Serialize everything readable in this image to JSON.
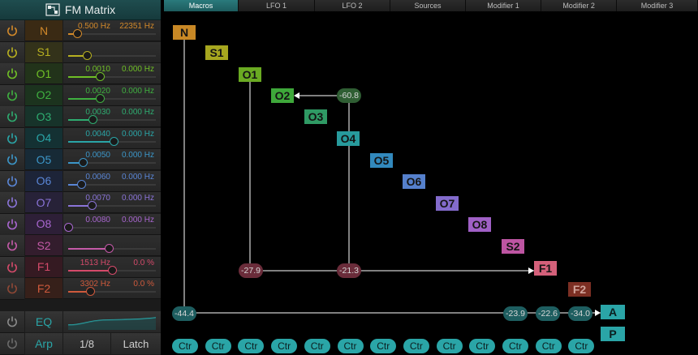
{
  "header": {
    "title": "FM Matrix"
  },
  "colors": {
    "accent": "#2aa5a7",
    "arrow": "#ffffff"
  },
  "rows": [
    {
      "name": "N",
      "v1": "0.500 Hz",
      "v2": "22351 Hz",
      "level": 0.1,
      "color": "#d2892a",
      "bg": "#3a2a14"
    },
    {
      "name": "S1",
      "v1": "",
      "v2": "",
      "level": 0.21,
      "color": "#b7b020",
      "bg": "#33321a"
    },
    {
      "name": "O1",
      "v1": "0.0010",
      "v2": "0.000 Hz",
      "level": 0.36,
      "color": "#6fbf26",
      "bg": "#22331a"
    },
    {
      "name": "O2",
      "v1": "0.0020",
      "v2": "0.000 Hz",
      "level": 0.36,
      "color": "#3fb040",
      "bg": "#1c331e"
    },
    {
      "name": "O3",
      "v1": "0.0030",
      "v2": "0.000 Hz",
      "level": 0.28,
      "color": "#2eac70",
      "bg": "#17332a"
    },
    {
      "name": "O4",
      "v1": "0.0040",
      "v2": "0.000 Hz",
      "level": 0.52,
      "color": "#2aa5a7",
      "bg": "#143133"
    },
    {
      "name": "O5",
      "v1": "0.0050",
      "v2": "0.000 Hz",
      "level": 0.17,
      "color": "#3c96c8",
      "bg": "#172a36"
    },
    {
      "name": "O6",
      "v1": "0.0060",
      "v2": "0.000 Hz",
      "level": 0.15,
      "color": "#5a86d6",
      "bg": "#1d2438"
    },
    {
      "name": "O7",
      "v1": "0.0070",
      "v2": "0.000 Hz",
      "level": 0.27,
      "color": "#8a74d8",
      "bg": "#272238"
    },
    {
      "name": "O8",
      "v1": "0.0080",
      "v2": "0.000 Hz",
      "level": 0.0,
      "color": "#a866cf",
      "bg": "#2d1f37"
    },
    {
      "name": "S2",
      "v1": "",
      "v2": "",
      "level": 0.46,
      "color": "#c45aa8",
      "bg": "#331d2d"
    },
    {
      "name": "F1",
      "v1": "1513 Hz",
      "v2": "0.0 %",
      "level": 0.5,
      "color": "#d44a6a",
      "bg": "#351a22"
    },
    {
      "name": "F2",
      "v1": "3302 Hz",
      "v2": "0.0 %",
      "level": 0.25,
      "color": "#cf5a3c",
      "bg": "#36201a"
    }
  ],
  "eq": {
    "label": "EQ"
  },
  "arp": {
    "label": "Arp",
    "rate": "1/8",
    "latch": "Latch"
  },
  "tabs": [
    "Macros",
    "LFO 1",
    "LFO 2",
    "Sources",
    "Modifier 1",
    "Modifier 2",
    "Modifier 3"
  ],
  "matrix": {
    "nodes": [
      {
        "label": "N",
        "color": "#c88825",
        "text": "#141414"
      },
      {
        "label": "S1",
        "color": "#a7a71f",
        "text": "#141414"
      },
      {
        "label": "O1",
        "color": "#6aaa22",
        "text": "#141414"
      },
      {
        "label": "O2",
        "color": "#3ea83a",
        "text": "#141414"
      },
      {
        "label": "O3",
        "color": "#2f9a64",
        "text": "#141414"
      },
      {
        "label": "O4",
        "color": "#279a9c",
        "text": "#141414"
      },
      {
        "label": "O5",
        "color": "#3289bd",
        "text": "#141414"
      },
      {
        "label": "O6",
        "color": "#5580cc",
        "text": "#141414"
      },
      {
        "label": "O7",
        "color": "#836bcc",
        "text": "#141414"
      },
      {
        "label": "O8",
        "color": "#a060c6",
        "text": "#141414"
      },
      {
        "label": "S2",
        "color": "#bd55a2",
        "text": "#141414"
      },
      {
        "label": "F1",
        "color": "#d4607a",
        "text": "#141414"
      },
      {
        "label": "F2",
        "color": "#7c2f23",
        "text": "#d0a39a"
      },
      {
        "label": "A",
        "color": "#2aa5a7",
        "text": "#0b1e1f"
      },
      {
        "label": "P",
        "color": "#2aa5a7",
        "text": "#0b1e1f"
      }
    ],
    "pills": [
      {
        "value": "-60.8",
        "bg": "#2f5e33",
        "color": "#d7d7d7"
      },
      {
        "value": "-27.9",
        "bg": "#6a2c3a",
        "color": "#d7d7d7"
      },
      {
        "value": "-21.3",
        "bg": "#6a2c3a",
        "color": "#d7d7d7"
      },
      {
        "value": "-44.4",
        "bg": "#1e5e60",
        "color": "#d7d7d7"
      },
      {
        "value": "-23.9",
        "bg": "#1e5e60",
        "color": "#d7d7d7"
      },
      {
        "value": "-22.6",
        "bg": "#1e5e60",
        "color": "#d7d7d7"
      },
      {
        "value": "-34.0",
        "bg": "#1e5e60",
        "color": "#d7d7d7"
      }
    ],
    "ctr_label": "Ctr",
    "ctr_count": 13
  }
}
